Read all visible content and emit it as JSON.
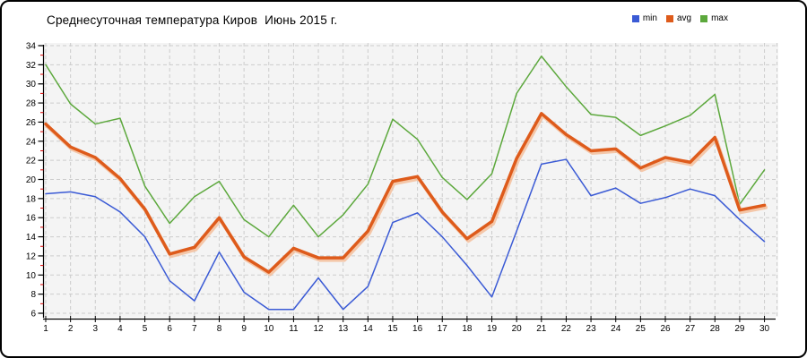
{
  "window": {
    "title": "Среднесуточная температура Киров  Июнь 2015 г."
  },
  "chart_data": {
    "type": "line",
    "title": "Среднесуточная температура Киров  Июнь 2015 г.",
    "xlabel": "",
    "ylabel": "",
    "x": [
      1,
      2,
      3,
      4,
      5,
      6,
      7,
      8,
      9,
      10,
      11,
      12,
      13,
      14,
      15,
      16,
      17,
      18,
      19,
      20,
      21,
      22,
      23,
      24,
      25,
      26,
      27,
      28,
      29,
      30
    ],
    "series": [
      {
        "name": "min",
        "color": "#3a5ad5",
        "values": [
          18.5,
          18.7,
          18.2,
          16.6,
          14.0,
          9.4,
          7.3,
          12.4,
          8.2,
          6.4,
          6.4,
          9.7,
          6.4,
          8.8,
          15.5,
          16.5,
          14.0,
          11.0,
          7.7,
          14.6,
          21.6,
          22.1,
          18.3,
          19.1,
          17.5,
          18.1,
          19.0,
          18.3,
          15.8,
          13.5
        ]
      },
      {
        "name": "avg",
        "color": "#de5b1b",
        "thick": true,
        "shadow_color": "#f4bc96",
        "values": [
          25.8,
          23.4,
          22.3,
          20.1,
          16.9,
          12.2,
          12.9,
          16.0,
          11.9,
          10.3,
          12.8,
          11.8,
          11.8,
          14.6,
          19.8,
          20.3,
          16.6,
          13.8,
          15.6,
          22.2,
          26.9,
          24.7,
          23.0,
          23.2,
          21.2,
          22.3,
          21.8,
          24.4,
          16.8,
          17.3
        ]
      },
      {
        "name": "max",
        "color": "#5ca83c",
        "values": [
          32.0,
          27.9,
          25.8,
          26.4,
          19.3,
          15.4,
          18.2,
          19.8,
          15.8,
          14.0,
          17.3,
          14.0,
          16.3,
          19.5,
          26.3,
          24.2,
          20.2,
          17.9,
          20.6,
          29.0,
          32.9,
          29.7,
          26.8,
          26.5,
          24.6,
          25.6,
          26.7,
          28.9,
          17.4,
          21.0
        ]
      }
    ],
    "legend": [
      "min",
      "avg",
      "max"
    ],
    "legend_position": "top-right",
    "ylim": [
      6,
      34
    ],
    "ytick_step": 2,
    "minor_ytick_step": 1,
    "grid": true,
    "colors": {
      "plot_bg": "#f4f4f4",
      "grid": "#cccccc",
      "axis": "#000000",
      "minor_tick": "#dd0000",
      "tick_label": "#000000"
    }
  }
}
